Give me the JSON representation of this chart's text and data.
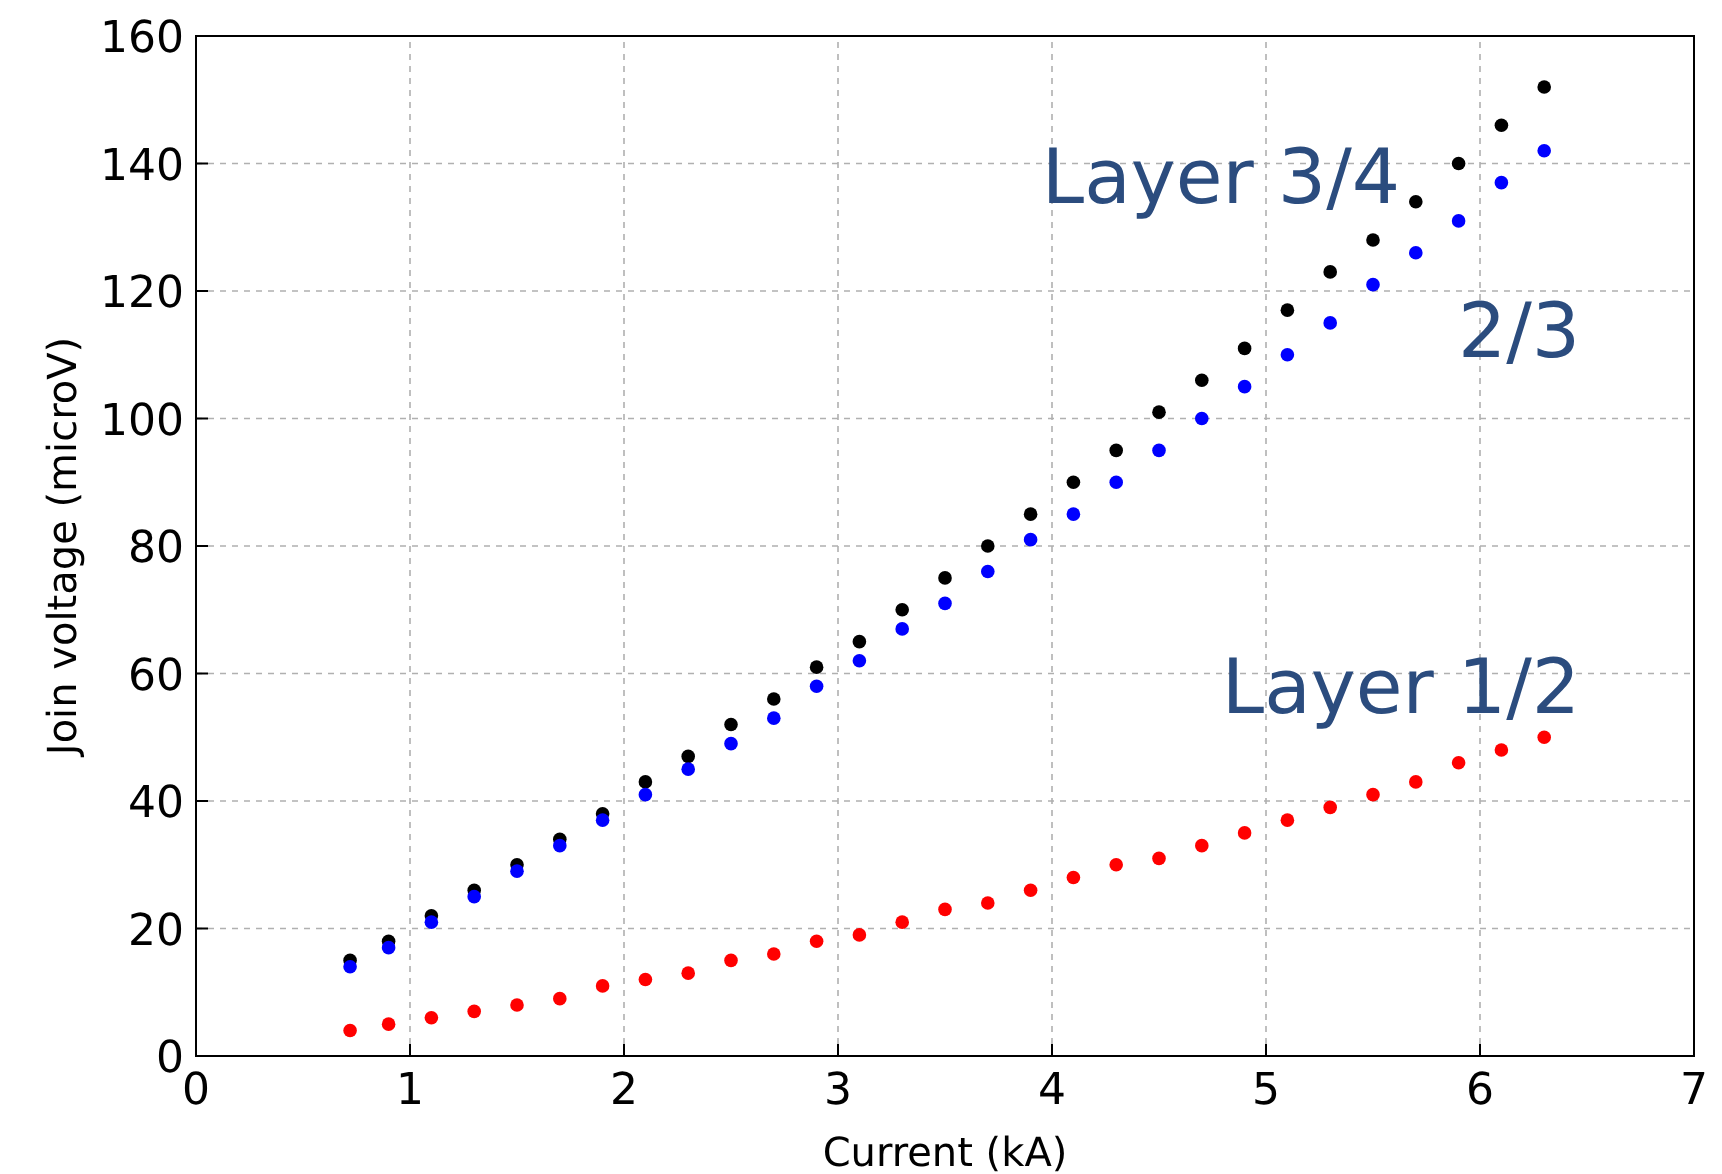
{
  "chart_data": {
    "type": "scatter",
    "xlabel": "Current (kA)",
    "ylabel": "Join voltage (microV)",
    "x": [
      0.72,
      0.9,
      1.1,
      1.3,
      1.5,
      1.7,
      1.9,
      2.1,
      2.3,
      2.5,
      2.7,
      2.9,
      3.1,
      3.3,
      3.5,
      3.7,
      3.9,
      4.1,
      4.3,
      4.5,
      4.7,
      4.9,
      5.1,
      5.3,
      5.5,
      5.7,
      5.9,
      6.1,
      6.3
    ],
    "series": [
      {
        "name": "Layer 3/4",
        "color": "#000000",
        "values": [
          15,
          18,
          22,
          26,
          30,
          34,
          38,
          43,
          47,
          52,
          56,
          61,
          65,
          70,
          75,
          80,
          85,
          90,
          95,
          101,
          106,
          111,
          117,
          123,
          128,
          134,
          140,
          146,
          152
        ]
      },
      {
        "name": "2/3",
        "color": "#0000ff",
        "values": [
          14,
          17,
          21,
          25,
          29,
          33,
          37,
          41,
          45,
          49,
          53,
          58,
          62,
          67,
          71,
          76,
          81,
          85,
          90,
          95,
          100,
          105,
          110,
          115,
          121,
          126,
          131,
          137,
          142
        ]
      },
      {
        "name": "Layer 1/2",
        "color": "#ff0000",
        "values": [
          4,
          5,
          6,
          7,
          8,
          9,
          11,
          12,
          13,
          15,
          16,
          18,
          19,
          21,
          23,
          24,
          26,
          28,
          30,
          31,
          33,
          35,
          37,
          39,
          41,
          43,
          46,
          48,
          50
        ]
      }
    ],
    "xlim": [
      0,
      7
    ],
    "xticks": [
      0,
      1,
      2,
      3,
      4,
      5,
      6,
      7
    ],
    "ylim": [
      0,
      160
    ],
    "yticks": [
      0,
      20,
      40,
      60,
      80,
      100,
      120,
      140,
      160
    ],
    "grid": true,
    "marker": "circle"
  }
}
